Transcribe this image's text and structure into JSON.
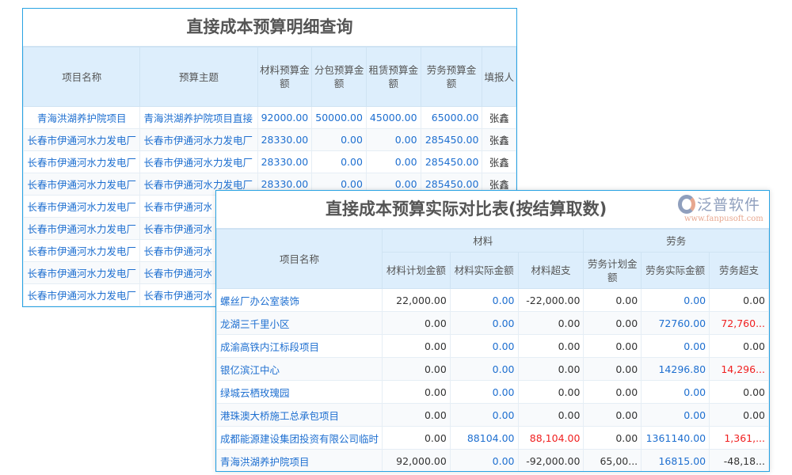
{
  "table1": {
    "title": "直接成本预算明细查询",
    "headers": [
      "项目名称",
      "预算主题",
      "材料预算金额",
      "分包预算金额",
      "租赁预算金额",
      "劳务预算金额",
      "填报人"
    ],
    "rows": [
      [
        "青海洪湖养护院项目",
        "青海洪湖养护院项目直接",
        "92000.00",
        "50000.00",
        "45000.00",
        "65000.00",
        "张鑫"
      ],
      [
        "长春市伊通河水力发电厂",
        "长春市伊通河水力发电厂",
        "28330.00",
        "0.00",
        "0.00",
        "285450.00",
        "张鑫"
      ],
      [
        "长春市伊通河水力发电厂",
        "长春市伊通河水力发电厂",
        "28330.00",
        "0.00",
        "0.00",
        "285450.00",
        "张鑫"
      ],
      [
        "长春市伊通河水力发电厂",
        "长春市伊通河水力发电厂",
        "28330.00",
        "0.00",
        "0.00",
        "285450.00",
        "张鑫"
      ],
      [
        "长春市伊通河水力发电厂",
        "长春市伊通河水力发电厂",
        "",
        "",
        "",
        "",
        ""
      ],
      [
        "长春市伊通河水力发电厂",
        "长春市伊通河水力发电厂",
        "",
        "",
        "",
        "",
        ""
      ],
      [
        "长春市伊通河水力发电厂",
        "长春市伊通河水力发电厂",
        "",
        "",
        "",
        "",
        ""
      ],
      [
        "长春市伊通河水力发电厂",
        "长春市伊通河水力发电厂",
        "",
        "",
        "",
        "",
        ""
      ],
      [
        "长春市伊通河水力发电厂",
        "长春市伊通河水力发电厂",
        "",
        "",
        "",
        "",
        ""
      ]
    ]
  },
  "table2": {
    "title": "直接成本预算实际对比表(按结算取数)",
    "name_header": "项目名称",
    "group1": "材料",
    "group2": "劳务",
    "sub_headers": [
      "材料计划金额",
      "材料实际金额",
      "材料超支",
      "劳务计划金额",
      "劳务实际金额",
      "劳务超支"
    ],
    "rows": [
      [
        "螺丝厂办公室装饰",
        "22,000.00",
        "0.00",
        "-22,000.00",
        "0.00",
        "0.00",
        "0.00"
      ],
      [
        "龙湖三千里小区",
        "0.00",
        "0.00",
        "0.00",
        "0.00",
        "72760.00",
        "72,760..."
      ],
      [
        "成渝高铁内江标段项目",
        "0.00",
        "0.00",
        "0.00",
        "0.00",
        "0.00",
        "0.00"
      ],
      [
        "银亿滨江中心",
        "0.00",
        "0.00",
        "0.00",
        "0.00",
        "14296.80",
        "14,296..."
      ],
      [
        "绿城云栖玫瑰园",
        "0.00",
        "0.00",
        "0.00",
        "0.00",
        "0.00",
        "0.00"
      ],
      [
        "港珠澳大桥施工总承包项目",
        "0.00",
        "0.00",
        "0.00",
        "0.00",
        "0.00",
        "0.00"
      ],
      [
        "成都能源建设集团投资有限公司临时",
        "0.00",
        "88104.00",
        "88,104.00",
        "0.00",
        "1361140.00",
        "1,361,..."
      ],
      [
        "青海洪湖养护院项目",
        "92,000.00",
        "0.00",
        "-92,000.00",
        "65,00...",
        "16815.00",
        "-48,18..."
      ]
    ],
    "red_cells": [
      [
        1,
        6
      ],
      [
        3,
        6
      ],
      [
        6,
        3
      ],
      [
        6,
        6
      ]
    ]
  },
  "logo": {
    "text": "泛普软件",
    "url": "www.fanpusoft.com"
  },
  "colors": {
    "border": "#29a3e3",
    "header_bg": "#ddeefc",
    "link": "#1e6fd0",
    "overspend": "#f02020"
  }
}
